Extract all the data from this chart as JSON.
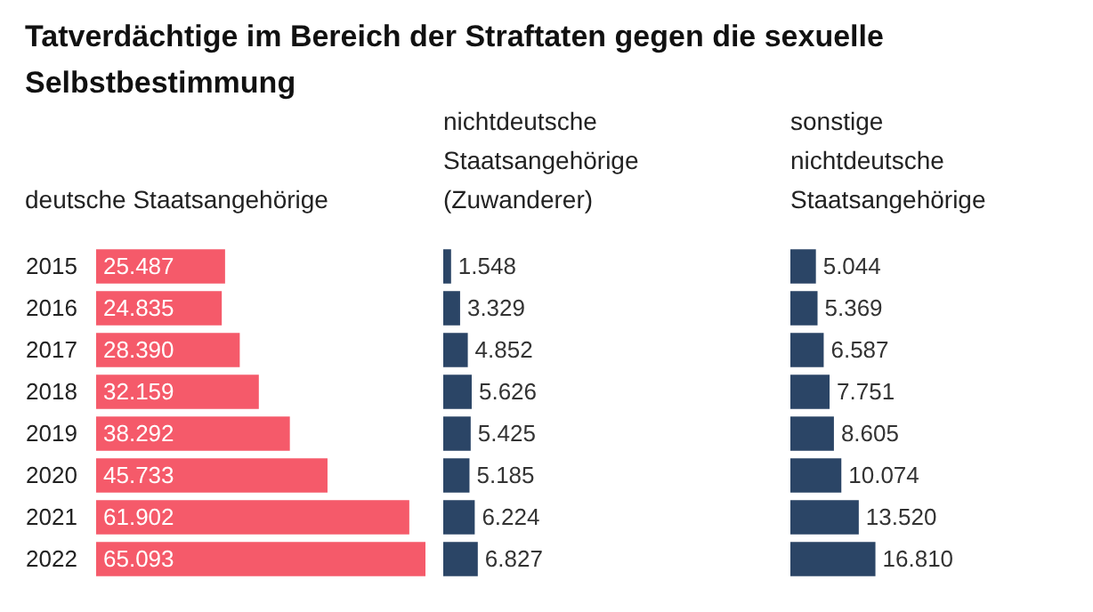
{
  "chart_data": [
    {
      "type": "bar",
      "orientation": "horizontal",
      "title": "Tatverdächtige im Bereich der Straftaten gegen die sexuelle Selbstbestimmung",
      "subtitle": "deutsche Staatsangehörige",
      "categories": [
        "2015",
        "2016",
        "2017",
        "2018",
        "2019",
        "2020",
        "2021",
        "2022"
      ],
      "values": [
        25487,
        24835,
        28390,
        32159,
        38292,
        45733,
        61902,
        65093
      ],
      "value_labels": [
        "25.487",
        "24.835",
        "28.390",
        "32.159",
        "38.292",
        "45.733",
        "61.902",
        "65.093"
      ],
      "color": "#f55a6a",
      "tick_labels": "y"
    },
    {
      "type": "bar",
      "orientation": "horizontal",
      "subtitle": "nichtdeutsche Staatsangehörige (Zuwanderer)",
      "categories": [
        "2015",
        "2016",
        "2017",
        "2018",
        "2019",
        "2020",
        "2021",
        "2022"
      ],
      "values": [
        1548,
        3329,
        4852,
        5626,
        5425,
        5185,
        6224,
        6827
      ],
      "value_labels": [
        "1.548",
        "3.329",
        "4.852",
        "5.626",
        "5.425",
        "5.185",
        "6.224",
        "6.827"
      ],
      "color": "#2b4566",
      "tick_labels": false
    },
    {
      "type": "bar",
      "orientation": "horizontal",
      "subtitle": "sonstige nichtdeutsche Staatsangehörige",
      "categories": [
        "2015",
        "2016",
        "2017",
        "2018",
        "2019",
        "2020",
        "2021",
        "2022"
      ],
      "values": [
        5044,
        5369,
        6587,
        7751,
        8605,
        10074,
        13520,
        16810
      ],
      "value_labels": [
        "5.044",
        "5.369",
        "6.587",
        "7.751",
        "8.605",
        "10.074",
        "13.520",
        "16.810"
      ],
      "color": "#2b4566",
      "tick_labels": false
    }
  ]
}
